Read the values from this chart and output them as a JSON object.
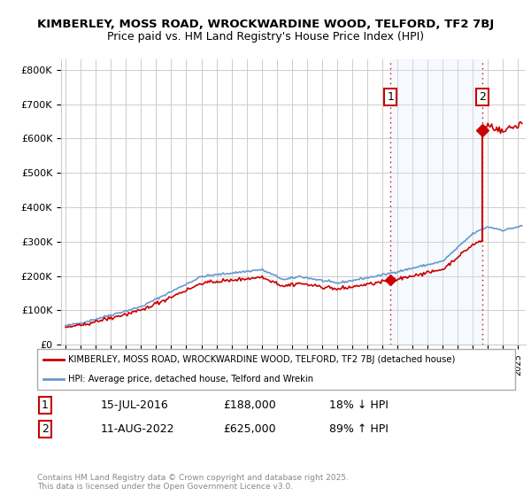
{
  "title1": "KIMBERLEY, MOSS ROAD, WROCKWARDINE WOOD, TELFORD, TF2 7BJ",
  "title2": "Price paid vs. HM Land Registry's House Price Index (HPI)",
  "ylabel_ticks": [
    "£0",
    "£100K",
    "£200K",
    "£300K",
    "£400K",
    "£500K",
    "£600K",
    "£700K",
    "£800K"
  ],
  "ytick_values": [
    0,
    100000,
    200000,
    300000,
    400000,
    500000,
    600000,
    700000,
    800000
  ],
  "ylim": [
    0,
    830000
  ],
  "xlim_start": 1994.7,
  "xlim_end": 2025.5,
  "sale1_x": 2016.54,
  "sale1_y": 188000,
  "sale2_x": 2022.61,
  "sale2_y": 625000,
  "red_color": "#cc0000",
  "blue_color": "#6699cc",
  "shade_color": "#ddeeff",
  "legend_line1": "KIMBERLEY, MOSS ROAD, WROCKWARDINE WOOD, TELFORD, TF2 7BJ (detached house)",
  "legend_line2": "HPI: Average price, detached house, Telford and Wrekin",
  "ann1_date": "15-JUL-2016",
  "ann1_price": "£188,000",
  "ann1_hpi": "18% ↓ HPI",
  "ann2_date": "11-AUG-2022",
  "ann2_price": "£625,000",
  "ann2_hpi": "89% ↑ HPI",
  "footer": "Contains HM Land Registry data © Crown copyright and database right 2025.\nThis data is licensed under the Open Government Licence v3.0.",
  "bg_color": "#ffffff",
  "grid_color": "#cccccc"
}
